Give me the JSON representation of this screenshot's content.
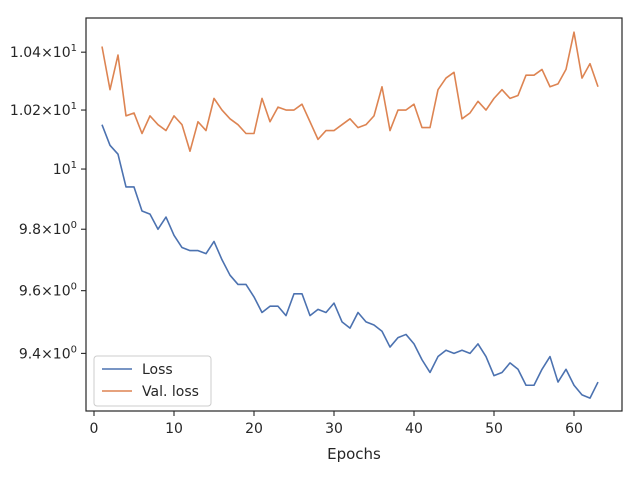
{
  "chart_data": {
    "type": "line",
    "xlabel": "Epochs",
    "ylabel": "",
    "title": "",
    "xlim": [
      -1,
      66
    ],
    "ylim": [
      9.22,
      10.52
    ],
    "yscale": "log",
    "grid": false,
    "legend_position": "lower-left",
    "x_ticks": [
      0,
      10,
      20,
      30,
      40,
      50,
      60
    ],
    "x_tick_labels": [
      "0",
      "10",
      "20",
      "30",
      "40",
      "50",
      "60"
    ],
    "y_ticks": [
      9.4,
      9.6,
      9.8,
      10.0,
      10.2,
      10.4
    ],
    "y_tick_mantissa": [
      "9.4",
      "9.6",
      "9.8",
      "",
      "1.02",
      "1.04"
    ],
    "y_tick_times": "×",
    "y_tick_base": "10",
    "y_tick_exponents": [
      "0",
      "0",
      "0",
      "",
      "1",
      "1"
    ],
    "y_tick_plain": [
      "",
      "",
      "",
      "10",
      "",
      ""
    ],
    "y_tick_plain_exponent": [
      "",
      "",
      "",
      "1",
      "",
      ""
    ],
    "x": [
      1,
      2,
      3,
      4,
      5,
      6,
      7,
      8,
      9,
      10,
      11,
      12,
      13,
      14,
      15,
      16,
      17,
      18,
      19,
      20,
      21,
      22,
      23,
      24,
      25,
      26,
      27,
      28,
      29,
      30,
      31,
      32,
      33,
      34,
      35,
      36,
      37,
      38,
      39,
      40,
      41,
      42,
      43,
      44,
      45,
      46,
      47,
      48,
      49,
      50,
      51,
      52,
      53,
      54,
      55,
      56,
      57,
      58,
      59,
      60,
      61,
      62,
      63
    ],
    "series": [
      {
        "name": "Loss",
        "color": "#4c72b0",
        "values": [
          10.15,
          10.08,
          10.05,
          9.94,
          9.94,
          9.86,
          9.85,
          9.8,
          9.84,
          9.78,
          9.74,
          9.73,
          9.73,
          9.72,
          9.76,
          9.7,
          9.65,
          9.62,
          9.62,
          9.58,
          9.53,
          9.55,
          9.55,
          9.52,
          9.59,
          9.59,
          9.52,
          9.54,
          9.53,
          9.56,
          9.5,
          9.48,
          9.53,
          9.5,
          9.49,
          9.47,
          9.42,
          9.45,
          9.46,
          9.43,
          9.38,
          9.34,
          9.39,
          9.41,
          9.4,
          9.41,
          9.4,
          9.43,
          9.39,
          9.33,
          9.34,
          9.37,
          9.35,
          9.3,
          9.3,
          9.35,
          9.39,
          9.31,
          9.35,
          9.3,
          9.27,
          9.26,
          9.31
        ]
      },
      {
        "name": "Val. loss",
        "color": "#dd8452",
        "values": [
          10.42,
          10.27,
          10.39,
          10.18,
          10.19,
          10.12,
          10.18,
          10.15,
          10.13,
          10.18,
          10.15,
          10.06,
          10.16,
          10.13,
          10.24,
          10.2,
          10.17,
          10.15,
          10.12,
          10.12,
          10.24,
          10.16,
          10.21,
          10.2,
          10.2,
          10.22,
          10.16,
          10.1,
          10.13,
          10.13,
          10.15,
          10.17,
          10.14,
          10.15,
          10.18,
          10.28,
          10.13,
          10.2,
          10.2,
          10.22,
          10.14,
          10.14,
          10.27,
          10.31,
          10.33,
          10.17,
          10.19,
          10.23,
          10.2,
          10.24,
          10.27,
          10.24,
          10.25,
          10.32,
          10.32,
          10.34,
          10.28,
          10.29,
          10.34,
          10.47,
          10.31,
          10.36,
          10.28
        ]
      }
    ]
  }
}
